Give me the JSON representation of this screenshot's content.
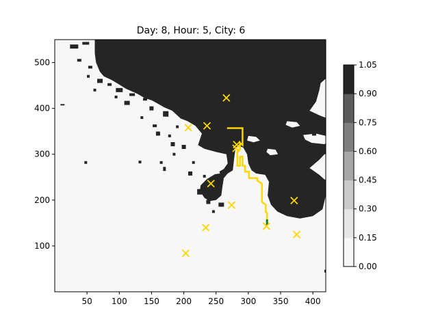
{
  "chart_data": {
    "type": "heatmap",
    "title": "Day: 8, Hour: 5, City: 6",
    "xlim": [
      0,
      420
    ],
    "ylim": [
      0,
      550
    ],
    "x_ticks": [
      50,
      100,
      150,
      200,
      250,
      300,
      350,
      400
    ],
    "y_ticks": [
      100,
      200,
      300,
      400,
      500
    ],
    "colorbar": {
      "range": [
        0,
        1.05
      ],
      "ticks": [
        "0.00",
        "0.15",
        "0.30",
        "0.45",
        "0.60",
        "0.75",
        "0.90",
        "1.05"
      ],
      "levels": [
        "#f7f7f7",
        "#e5e5e5",
        "#c9c9c9",
        "#a6a6a6",
        "#7e7e7e",
        "#5c5c5c",
        "#252525"
      ]
    },
    "cities": [
      {
        "x": 203,
        "y": 84
      },
      {
        "x": 234,
        "y": 140
      },
      {
        "x": 242,
        "y": 236
      },
      {
        "x": 207,
        "y": 358
      },
      {
        "x": 236,
        "y": 362
      },
      {
        "x": 266,
        "y": 423
      },
      {
        "x": 274,
        "y": 189
      },
      {
        "x": 281,
        "y": 313
      },
      {
        "x": 282,
        "y": 321
      },
      {
        "x": 328,
        "y": 143
      },
      {
        "x": 371,
        "y": 199
      },
      {
        "x": 375,
        "y": 125
      }
    ],
    "route": [
      [
        267,
        357
      ],
      [
        291,
        357
      ],
      [
        291,
        320
      ],
      [
        287,
        325
      ],
      [
        287,
        310
      ],
      [
        283,
        310
      ],
      [
        283,
        275
      ],
      [
        287,
        275
      ],
      [
        287,
        295
      ],
      [
        291,
        295
      ],
      [
        291,
        275
      ],
      [
        295,
        275
      ],
      [
        295,
        262
      ],
      [
        301,
        262
      ],
      [
        301,
        248
      ],
      [
        314,
        248
      ],
      [
        314,
        242
      ],
      [
        321,
        236
      ],
      [
        321,
        196
      ],
      [
        327,
        190
      ],
      [
        327,
        174
      ],
      [
        329,
        172
      ],
      [
        329,
        158
      ]
    ],
    "route_color": "#ffd700",
    "start_segment": [
      [
        329,
        158
      ],
      [
        329,
        145
      ]
    ],
    "start_color": "#1a7f1a",
    "marker_color": "#ffd700",
    "storm_color": "#252525",
    "background_color": "#f7f7f7"
  }
}
